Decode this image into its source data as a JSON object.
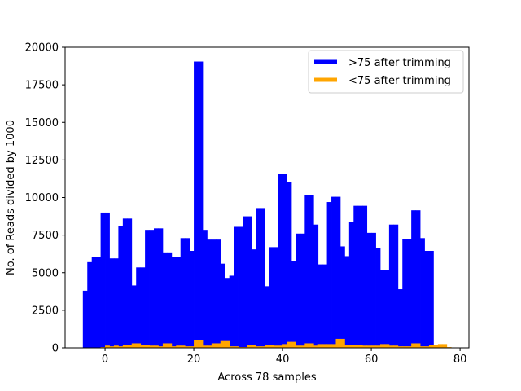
{
  "chart_data": {
    "type": "bar",
    "xlabel": "Across 78 samples",
    "ylabel": "No. of Reads divided by 1000",
    "xlim": [
      -9,
      82
    ],
    "ylim": [
      0,
      20000
    ],
    "xticks": [
      0,
      20,
      40,
      60,
      80
    ],
    "yticks": [
      0,
      2500,
      5000,
      7500,
      10000,
      12500,
      15000,
      17500,
      20000
    ],
    "legend_position": "top-right",
    "series": [
      {
        "name": ">75 after trimming",
        "color": "#0000ff",
        "x": [
          -5,
          -4,
          -3,
          -2,
          -1,
          0,
          1,
          2,
          3,
          4,
          5,
          6,
          7,
          8,
          9,
          10,
          11,
          12,
          13,
          14,
          15,
          16,
          17,
          18,
          19,
          20,
          21,
          22,
          23,
          24,
          25,
          26,
          27,
          28,
          29,
          30,
          31,
          32,
          33,
          34,
          35,
          36,
          37,
          38,
          39,
          40,
          41,
          42,
          43,
          44,
          45,
          46,
          47,
          48,
          49,
          50,
          51,
          52,
          53,
          54,
          55,
          56,
          57,
          58,
          59,
          60,
          61,
          62,
          63,
          64,
          65,
          66,
          67,
          68,
          69,
          70,
          71,
          72,
          73
        ],
        "values": [
          3800,
          5700,
          6050,
          6050,
          9000,
          9000,
          5950,
          5950,
          8100,
          8600,
          8600,
          4150,
          5350,
          5350,
          7850,
          7850,
          7950,
          7950,
          6350,
          6350,
          6050,
          6050,
          7300,
          7300,
          6450,
          19050,
          19050,
          7850,
          7200,
          7200,
          7200,
          5600,
          4650,
          4800,
          8050,
          8050,
          8750,
          8750,
          6550,
          9300,
          9300,
          4100,
          6700,
          6700,
          11550,
          11550,
          11050,
          5750,
          7600,
          7600,
          10150,
          10150,
          8200,
          5550,
          5550,
          9700,
          10050,
          10050,
          6750,
          6100,
          8350,
          9450,
          9450,
          9450,
          7650,
          7650,
          6650,
          5200,
          5150,
          8200,
          8200,
          3900,
          7250,
          7250,
          9150,
          9150,
          7300,
          6450,
          6450
        ]
      },
      {
        "name": "<75 after trimming",
        "color": "#ffa500",
        "x": [
          -1,
          0,
          1,
          2,
          3,
          4,
          5,
          6,
          7,
          8,
          9,
          10,
          11,
          12,
          13,
          14,
          15,
          16,
          17,
          18,
          19,
          20,
          21,
          22,
          23,
          24,
          25,
          26,
          27,
          28,
          29,
          30,
          31,
          32,
          33,
          34,
          35,
          36,
          37,
          38,
          39,
          40,
          41,
          42,
          43,
          44,
          45,
          46,
          47,
          48,
          49,
          50,
          51,
          52,
          53,
          54,
          55,
          56,
          57,
          58,
          59,
          60,
          61,
          62,
          63,
          64,
          65,
          66,
          67,
          68,
          69,
          70,
          71,
          72,
          73,
          74,
          75,
          76,
          77
        ],
        "values": [
          50,
          150,
          100,
          150,
          100,
          200,
          200,
          300,
          300,
          200,
          200,
          150,
          150,
          100,
          300,
          300,
          100,
          150,
          150,
          100,
          100,
          500,
          500,
          150,
          150,
          300,
          300,
          450,
          450,
          100,
          100,
          50,
          50,
          200,
          200,
          100,
          100,
          200,
          200,
          150,
          150,
          250,
          400,
          400,
          150,
          150,
          300,
          300,
          150,
          250,
          250,
          250,
          250,
          600,
          600,
          200,
          200,
          200,
          200,
          150,
          150,
          150,
          150,
          250,
          250,
          150,
          150,
          100,
          100,
          100,
          300,
          300,
          100,
          100,
          200,
          200,
          250,
          250,
          50
        ]
      }
    ]
  }
}
